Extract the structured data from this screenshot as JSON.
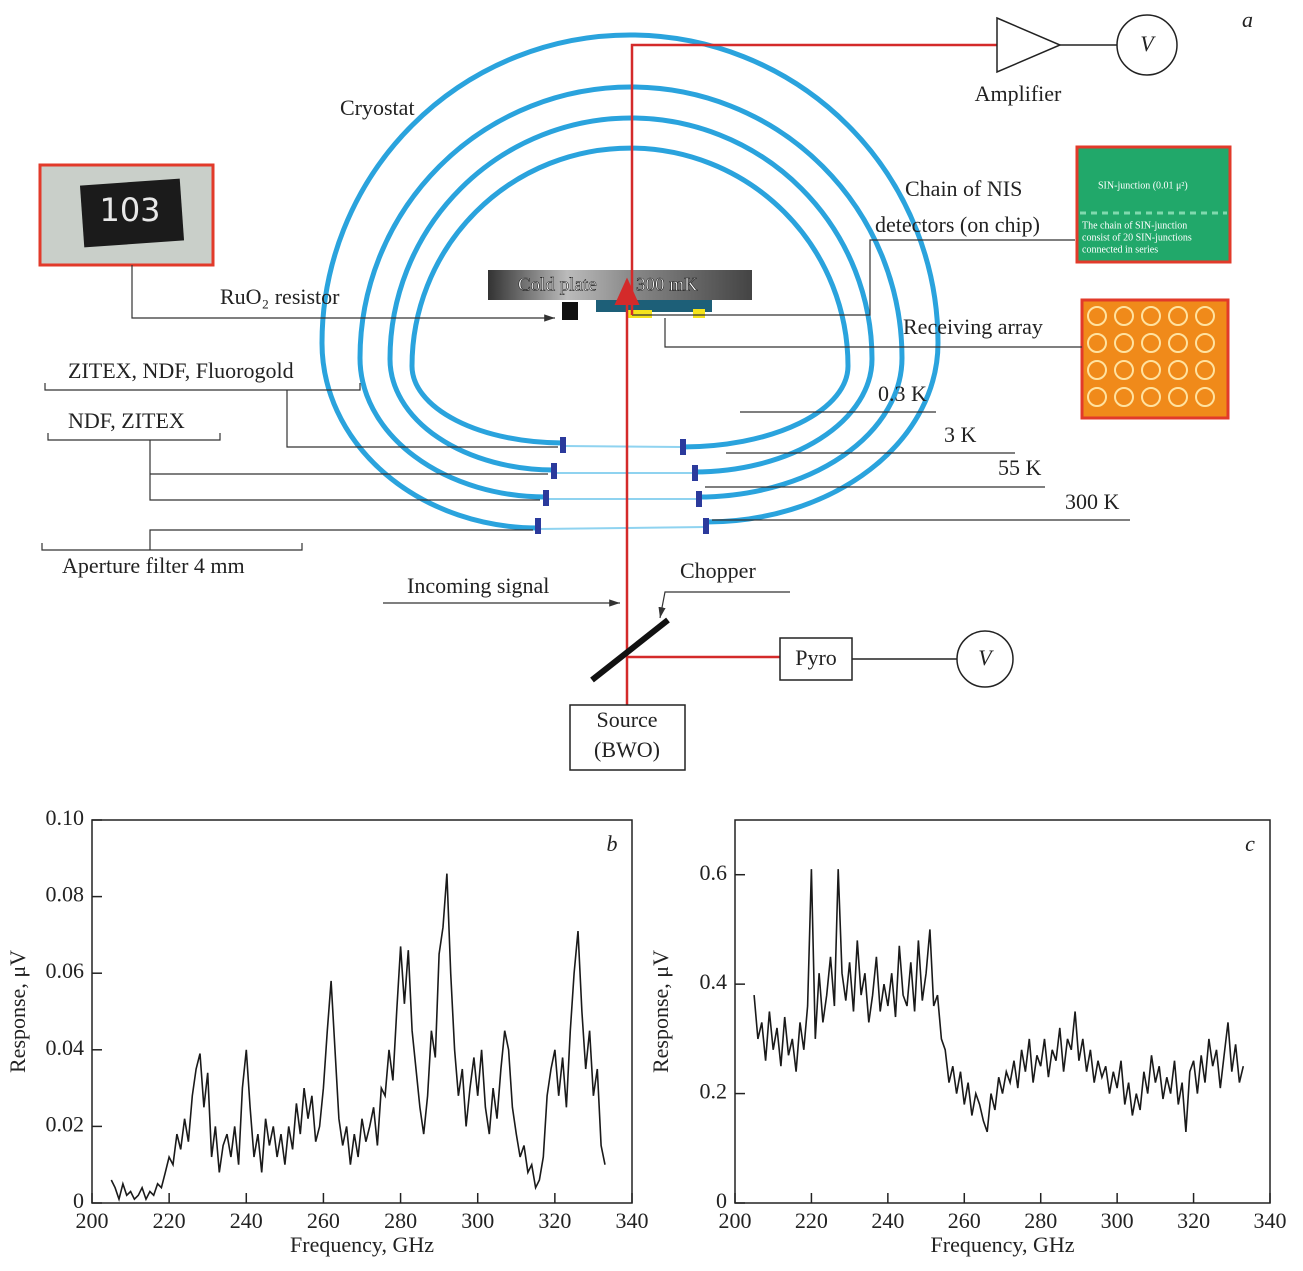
{
  "diagram": {
    "panel_label": "a",
    "cryostat": "Cryostat",
    "amplifier": "Amplifier",
    "amplifier_meter": "V",
    "resistor_code": "103",
    "ruo2": "RuO₂ resistor",
    "cold_plate": "Cold plate",
    "cold_temp": "300 mK",
    "nis_chain": [
      "Chain of NIS",
      "detectors (on chip)"
    ],
    "chip_title": "SIN-junction (0.01 μ²)",
    "chip_note": [
      "The chain of SIN-junction",
      "consist of 20 SIN-junctions",
      "connected in series"
    ],
    "receiving": "Receiving array",
    "filters": [
      "ZITEX, NDF, Fluorogold",
      "NDF, ZITEX",
      "Aperture filter 4 mm"
    ],
    "stages": [
      "0.3 K",
      "3 K",
      "55 K",
      "300 K"
    ],
    "incoming": "Incoming signal",
    "chopper": "Chopper",
    "pyro": "Pyro",
    "pyro_meter": "V",
    "source": [
      "Source",
      "(BWO)"
    ]
  },
  "chart_data": [
    {
      "type": "line",
      "annotation": "b",
      "x_label": "Frequency, GHz",
      "y_label": "Response, μV",
      "color": "#1a1a1a",
      "x": [
        205,
        206,
        207,
        208,
        209,
        210,
        211,
        212,
        213,
        214,
        215,
        216,
        217,
        218,
        219,
        220,
        221,
        222,
        223,
        224,
        225,
        226,
        227,
        228,
        229,
        230,
        231,
        232,
        233,
        234,
        235,
        236,
        237,
        238,
        239,
        240,
        241,
        242,
        243,
        244,
        245,
        246,
        247,
        248,
        249,
        250,
        251,
        252,
        253,
        254,
        255,
        256,
        257,
        258,
        259,
        260,
        261,
        262,
        263,
        264,
        265,
        266,
        267,
        268,
        269,
        270,
        271,
        272,
        273,
        274,
        275,
        276,
        277,
        278,
        279,
        280,
        281,
        282,
        283,
        284,
        285,
        286,
        287,
        288,
        289,
        290,
        291,
        292,
        293,
        294,
        295,
        296,
        297,
        298,
        299,
        300,
        301,
        302,
        303,
        304,
        305,
        306,
        307,
        308,
        309,
        310,
        311,
        312,
        313,
        314,
        315,
        316,
        317,
        318,
        319,
        320,
        321,
        322,
        323,
        324,
        325,
        326,
        327,
        328,
        329,
        330,
        331,
        332,
        333
      ],
      "values": [
        0.006,
        0.004,
        0.001,
        0.005,
        0.002,
        0.003,
        0.001,
        0.002,
        0.004,
        0.001,
        0.003,
        0.002,
        0.005,
        0.004,
        0.008,
        0.012,
        0.01,
        0.018,
        0.014,
        0.022,
        0.016,
        0.028,
        0.035,
        0.039,
        0.025,
        0.034,
        0.012,
        0.02,
        0.008,
        0.015,
        0.018,
        0.012,
        0.02,
        0.01,
        0.03,
        0.04,
        0.025,
        0.012,
        0.018,
        0.008,
        0.022,
        0.015,
        0.02,
        0.012,
        0.018,
        0.01,
        0.02,
        0.014,
        0.026,
        0.018,
        0.03,
        0.022,
        0.028,
        0.016,
        0.02,
        0.03,
        0.045,
        0.058,
        0.04,
        0.022,
        0.015,
        0.02,
        0.01,
        0.018,
        0.012,
        0.022,
        0.016,
        0.02,
        0.025,
        0.015,
        0.03,
        0.028,
        0.04,
        0.032,
        0.05,
        0.067,
        0.052,
        0.066,
        0.045,
        0.035,
        0.025,
        0.018,
        0.028,
        0.045,
        0.038,
        0.065,
        0.072,
        0.086,
        0.06,
        0.04,
        0.028,
        0.035,
        0.02,
        0.03,
        0.038,
        0.028,
        0.04,
        0.025,
        0.018,
        0.03,
        0.022,
        0.035,
        0.045,
        0.04,
        0.025,
        0.018,
        0.012,
        0.015,
        0.008,
        0.01,
        0.004,
        0.006,
        0.012,
        0.028,
        0.035,
        0.04,
        0.028,
        0.038,
        0.025,
        0.045,
        0.06,
        0.071,
        0.05,
        0.035,
        0.045,
        0.028,
        0.035,
        0.015,
        0.01
      ],
      "xlim": [
        200,
        340
      ],
      "xticks": [
        200,
        220,
        240,
        260,
        280,
        300,
        320,
        340
      ],
      "ylim": [
        0,
        0.1
      ],
      "yticks": [
        0,
        0.02,
        0.04,
        0.06,
        0.08,
        {
          "value": 0.1,
          "label": "0.10"
        }
      ]
    },
    {
      "type": "line",
      "annotation": "c",
      "x_label": "Frequency, GHz",
      "y_label": "Response, μV",
      "color": "#1a1a1a",
      "x": [
        205,
        206,
        207,
        208,
        209,
        210,
        211,
        212,
        213,
        214,
        215,
        216,
        217,
        218,
        219,
        220,
        221,
        222,
        223,
        224,
        225,
        226,
        227,
        228,
        229,
        230,
        231,
        232,
        233,
        234,
        235,
        236,
        237,
        238,
        239,
        240,
        241,
        242,
        243,
        244,
        245,
        246,
        247,
        248,
        249,
        250,
        251,
        252,
        253,
        254,
        255,
        256,
        257,
        258,
        259,
        260,
        261,
        262,
        263,
        264,
        265,
        266,
        267,
        268,
        269,
        270,
        271,
        272,
        273,
        274,
        275,
        276,
        277,
        278,
        279,
        280,
        281,
        282,
        283,
        284,
        285,
        286,
        287,
        288,
        289,
        290,
        291,
        292,
        293,
        294,
        295,
        296,
        297,
        298,
        299,
        300,
        301,
        302,
        303,
        304,
        305,
        306,
        307,
        308,
        309,
        310,
        311,
        312,
        313,
        314,
        315,
        316,
        317,
        318,
        319,
        320,
        321,
        322,
        323,
        324,
        325,
        326,
        327,
        328,
        329,
        330,
        331,
        332,
        333
      ],
      "values": [
        0.38,
        0.3,
        0.33,
        0.26,
        0.35,
        0.28,
        0.32,
        0.25,
        0.34,
        0.27,
        0.3,
        0.24,
        0.33,
        0.28,
        0.36,
        0.61,
        0.3,
        0.42,
        0.33,
        0.38,
        0.45,
        0.36,
        0.61,
        0.42,
        0.37,
        0.44,
        0.35,
        0.48,
        0.38,
        0.42,
        0.33,
        0.38,
        0.45,
        0.35,
        0.4,
        0.36,
        0.42,
        0.34,
        0.47,
        0.38,
        0.36,
        0.44,
        0.35,
        0.48,
        0.37,
        0.42,
        0.5,
        0.36,
        0.38,
        0.3,
        0.28,
        0.22,
        0.25,
        0.2,
        0.24,
        0.18,
        0.22,
        0.16,
        0.2,
        0.18,
        0.15,
        0.13,
        0.2,
        0.17,
        0.23,
        0.2,
        0.24,
        0.22,
        0.26,
        0.21,
        0.28,
        0.24,
        0.3,
        0.22,
        0.27,
        0.25,
        0.3,
        0.23,
        0.28,
        0.26,
        0.32,
        0.24,
        0.3,
        0.28,
        0.35,
        0.26,
        0.3,
        0.24,
        0.28,
        0.22,
        0.26,
        0.23,
        0.25,
        0.2,
        0.24,
        0.21,
        0.26,
        0.18,
        0.22,
        0.16,
        0.2,
        0.17,
        0.24,
        0.2,
        0.27,
        0.22,
        0.25,
        0.19,
        0.23,
        0.2,
        0.26,
        0.18,
        0.22,
        0.13,
        0.24,
        0.26,
        0.2,
        0.27,
        0.22,
        0.3,
        0.25,
        0.28,
        0.21,
        0.27,
        0.33,
        0.24,
        0.29,
        0.22,
        0.25
      ],
      "xlim": [
        200,
        340
      ],
      "xticks": [
        200,
        220,
        240,
        260,
        280,
        300,
        320,
        340
      ],
      "ylim": [
        0,
        0.7
      ],
      "yticks": [
        0,
        0.2,
        0.4,
        0.6
      ]
    }
  ]
}
